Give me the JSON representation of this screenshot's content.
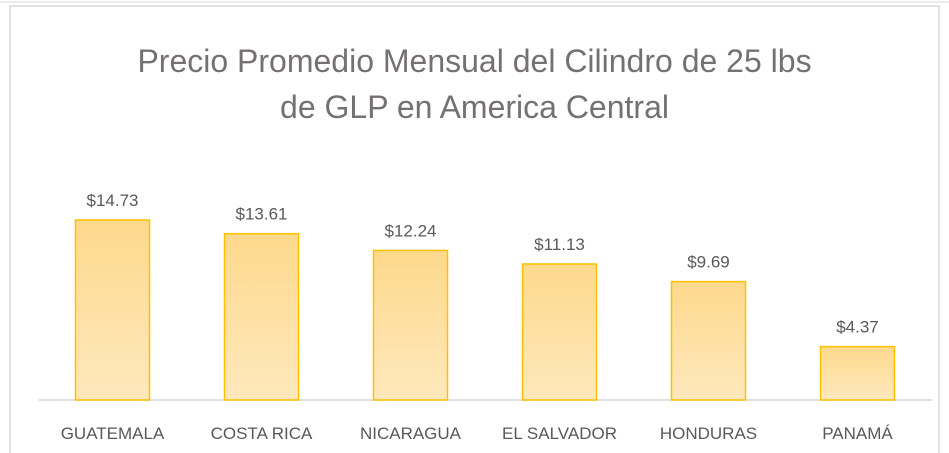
{
  "chart_data": {
    "type": "bar",
    "title": "Precio Promedio Mensual del Cilindro de 25 lbs de GLP en America Central",
    "categories": [
      "GUATEMALA",
      "COSTA RICA",
      "NICARAGUA",
      "EL SALVADOR",
      "HONDURAS",
      "PANAMÁ"
    ],
    "values": [
      14.73,
      13.61,
      12.24,
      11.13,
      9.69,
      4.37
    ],
    "value_labels": [
      "$14.73",
      "$13.61",
      "$12.24",
      "$11.13",
      "$9.69",
      "$4.37"
    ],
    "color": "#ffc000"
  }
}
